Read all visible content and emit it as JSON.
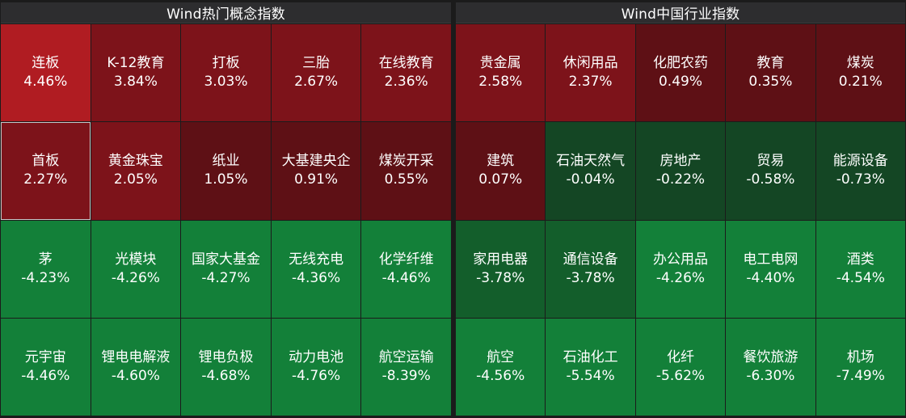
{
  "left_panel": {
    "title": "Wind热门概念指数",
    "tiles": [
      {
        "name": "连板",
        "pct": "4.46%",
        "color": "#b01c22"
      },
      {
        "name": "K-12教育",
        "pct": "3.84%",
        "color": "#7d131a"
      },
      {
        "name": "打板",
        "pct": "3.03%",
        "color": "#7d131a"
      },
      {
        "name": "三胎",
        "pct": "2.67%",
        "color": "#7d131a"
      },
      {
        "name": "在线教育",
        "pct": "2.36%",
        "color": "#7d131a"
      },
      {
        "name": "首板",
        "pct": "2.27%",
        "color": "#7d131a",
        "selected": true
      },
      {
        "name": "黄金珠宝",
        "pct": "2.05%",
        "color": "#7d131a"
      },
      {
        "name": "纸业",
        "pct": "1.05%",
        "color": "#5e1015"
      },
      {
        "name": "大基建央企",
        "pct": "0.91%",
        "color": "#5e1015"
      },
      {
        "name": "煤炭开采",
        "pct": "0.55%",
        "color": "#5e1015"
      },
      {
        "name": "茅",
        "pct": "-4.23%",
        "color": "#138039"
      },
      {
        "name": "光模块",
        "pct": "-4.26%",
        "color": "#138039"
      },
      {
        "name": "国家大基金",
        "pct": "-4.27%",
        "color": "#138039"
      },
      {
        "name": "无线充电",
        "pct": "-4.36%",
        "color": "#138039"
      },
      {
        "name": "化学纤维",
        "pct": "-4.46%",
        "color": "#138039"
      },
      {
        "name": "元宇宙",
        "pct": "-4.46%",
        "color": "#138039"
      },
      {
        "name": "锂电电解液",
        "pct": "-4.60%",
        "color": "#138039"
      },
      {
        "name": "锂电负极",
        "pct": "-4.68%",
        "color": "#138039"
      },
      {
        "name": "动力电池",
        "pct": "-4.76%",
        "color": "#138039"
      },
      {
        "name": "航空运输",
        "pct": "-8.39%",
        "color": "#138039"
      }
    ]
  },
  "right_panel": {
    "title": "Wind中国行业指数",
    "tiles": [
      {
        "name": "贵金属",
        "pct": "2.58%",
        "color": "#7d131a"
      },
      {
        "name": "休闲用品",
        "pct": "2.37%",
        "color": "#7d131a"
      },
      {
        "name": "化肥农药",
        "pct": "0.49%",
        "color": "#5e1015"
      },
      {
        "name": "教育",
        "pct": "0.35%",
        "color": "#5e1015"
      },
      {
        "name": "煤炭",
        "pct": "0.21%",
        "color": "#5e1015"
      },
      {
        "name": "建筑",
        "pct": "0.07%",
        "color": "#5e1015"
      },
      {
        "name": "石油天然气",
        "pct": "-0.04%",
        "color": "#144624"
      },
      {
        "name": "房地产",
        "pct": "-0.22%",
        "color": "#144624"
      },
      {
        "name": "贸易",
        "pct": "-0.58%",
        "color": "#144624"
      },
      {
        "name": "能源设备",
        "pct": "-0.73%",
        "color": "#144624"
      },
      {
        "name": "家用电器",
        "pct": "-3.78%",
        "color": "#135e2b"
      },
      {
        "name": "通信设备",
        "pct": "-3.78%",
        "color": "#135e2b"
      },
      {
        "name": "办公用品",
        "pct": "-4.26%",
        "color": "#138039"
      },
      {
        "name": "电工电网",
        "pct": "-4.40%",
        "color": "#138039"
      },
      {
        "name": "酒类",
        "pct": "-4.54%",
        "color": "#138039"
      },
      {
        "name": "航空",
        "pct": "-4.56%",
        "color": "#138039"
      },
      {
        "name": "石油化工",
        "pct": "-5.54%",
        "color": "#138039"
      },
      {
        "name": "化纤",
        "pct": "-5.62%",
        "color": "#138039"
      },
      {
        "name": "餐饮旅游",
        "pct": "-6.30%",
        "color": "#138039"
      },
      {
        "name": "机场",
        "pct": "-7.49%",
        "color": "#138039"
      }
    ]
  }
}
